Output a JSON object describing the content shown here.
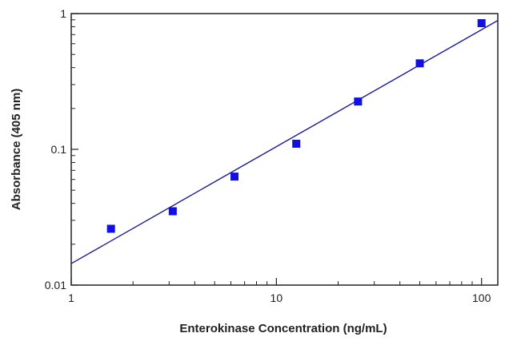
{
  "chart_data": {
    "type": "scatter",
    "title": "",
    "xlabel": "Enterokinase Concentration (ng/mL)",
    "ylabel": "Absorbance (405 nm)",
    "x_scale": "log",
    "y_scale": "log",
    "xlim": [
      1,
      120
    ],
    "ylim": [
      0.01,
      1
    ],
    "x_ticks": [
      {
        "value": 1,
        "label": "1"
      },
      {
        "value": 10,
        "label": "10"
      },
      {
        "value": 100,
        "label": "100"
      }
    ],
    "y_ticks": [
      {
        "value": 0.01,
        "label": "0.01"
      },
      {
        "value": 0.1,
        "label": "0.1"
      },
      {
        "value": 1,
        "label": "1"
      }
    ],
    "grid": false,
    "legend": "none",
    "series": [
      {
        "marker": "square",
        "color": "#1010e0",
        "points": [
          {
            "x": 1.5625,
            "y": 0.026
          },
          {
            "x": 3.125,
            "y": 0.035
          },
          {
            "x": 6.25,
            "y": 0.063
          },
          {
            "x": 12.5,
            "y": 0.11
          },
          {
            "x": 25,
            "y": 0.225
          },
          {
            "x": 50,
            "y": 0.43
          },
          {
            "x": 100,
            "y": 0.85
          }
        ]
      }
    ],
    "fit_line": {
      "color": "#1a1a9a",
      "points": [
        {
          "x": 1,
          "y": 0.0144
        },
        {
          "x": 120,
          "y": 0.89
        }
      ]
    }
  }
}
